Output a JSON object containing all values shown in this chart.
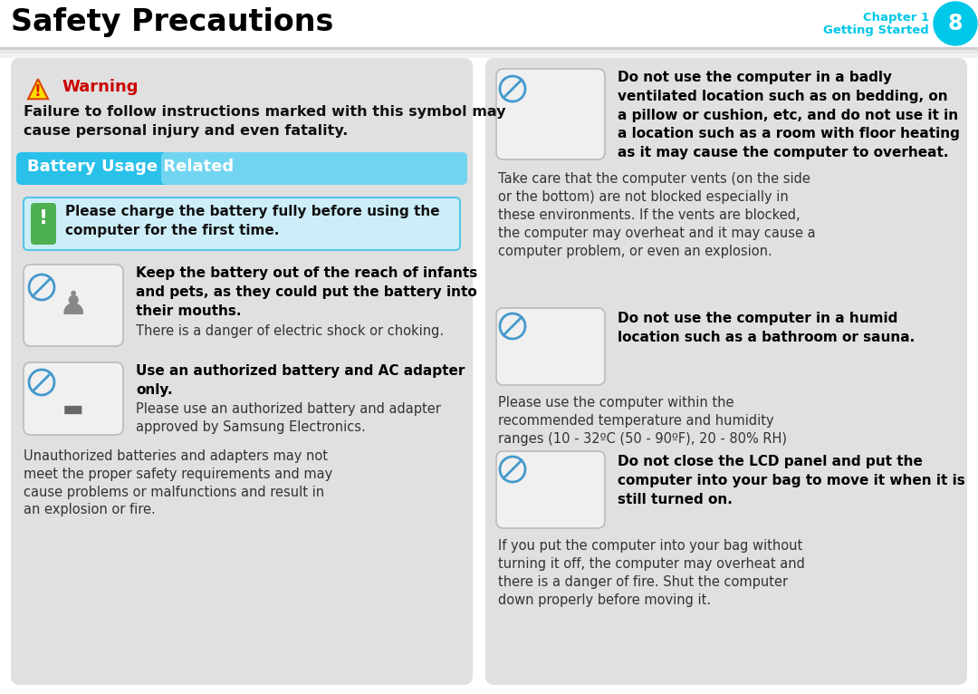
{
  "page_bg": "#ffffff",
  "header_title": "Safety Precautions",
  "header_chapter_text": "Chapter 1",
  "header_getting_started": "Getting Started",
  "header_page_num": "8",
  "header_cyan": "#00c8e8",
  "left_panel_bg": "#e0e0e0",
  "right_panel_bg": "#e0e0e0",
  "warning_color": "#cc0000",
  "warning_text": "Warning",
  "warning_body": "Failure to follow instructions marked with this symbol may\ncause personal injury and even fatality.",
  "battery_header_text": "Battery Usage Related",
  "charge_text": "Please charge the battery fully before using the\ncomputer for the first time.",
  "item1_bold": "Keep the battery out of the reach of infants\nand pets, as they could put the battery into\ntheir mouths.",
  "item1_body": "There is a danger of electric shock or choking.",
  "item2_bold": "Use an authorized battery and AC adapter\nonly.",
  "item2_body1": "Please use an authorized battery and adapter\napproved by Samsung Electronics.",
  "item2_body2": "Unauthorized batteries and adapters may not\nmeet the proper safety requirements and may\ncause problems or malfunctions and result in\nan explosion or fire.",
  "right_item1_bold": "Do not use the computer in a badly\nventilated location such as on bedding, on\na pillow or cushion, etc, and do not use it in\na location such as a room with floor heating\nas it may cause the computer to overheat.",
  "right_item1_body": "Take care that the computer vents (on the side\nor the bottom) are not blocked especially in\nthese environments. If the vents are blocked,\nthe computer may overheat and it may cause a\ncomputer problem, or even an explosion.",
  "right_item2_bold": "Do not use the computer in a humid\nlocation such as a bathroom or sauna.",
  "right_item2_body": "Please use the computer within the\nrecommended temperature and humidity\nranges (10 - 32ºC (50 - 90ºF), 20 - 80% RH)",
  "right_item3_bold": "Do not close the LCD panel and put the\ncomputer into your bag to move it when it is\nstill turned on.",
  "right_item3_body": "If you put the computer into your bag without\nturning it off, the computer may overheat and\nthere is a danger of fire. Shut the computer\ndown properly before moving it.",
  "img_box_bg": "#f0f0f0",
  "img_box_border": "#bbbbbb"
}
